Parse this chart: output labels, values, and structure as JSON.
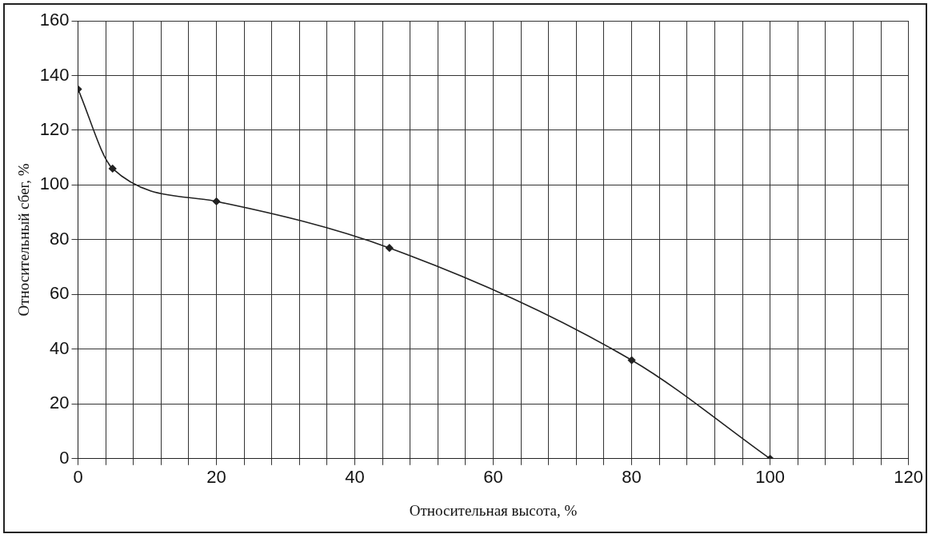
{
  "chart_data": {
    "type": "line",
    "xlabel": "Относительная высота, %",
    "ylabel": "Относительный сбег, %",
    "x": [
      0,
      5,
      20,
      45,
      80,
      100
    ],
    "series": [
      {
        "color": "#222222",
        "values": [
          135,
          106,
          94,
          77,
          36,
          0
        ]
      }
    ],
    "xlim": [
      0,
      120
    ],
    "xticks": [
      0,
      {
        "value": 4,
        "label": null
      },
      {
        "value": 8,
        "label": null
      },
      {
        "value": 12,
        "label": null
      },
      {
        "value": 16,
        "label": null
      },
      20,
      {
        "value": 24,
        "label": null
      },
      {
        "value": 28,
        "label": null
      },
      {
        "value": 32,
        "label": null
      },
      {
        "value": 36,
        "label": null
      },
      40,
      {
        "value": 44,
        "label": null
      },
      {
        "value": 48,
        "label": null
      },
      {
        "value": 52,
        "label": null
      },
      {
        "value": 56,
        "label": null
      },
      60,
      {
        "value": 64,
        "label": null
      },
      {
        "value": 68,
        "label": null
      },
      {
        "value": 72,
        "label": null
      },
      {
        "value": 76,
        "label": null
      },
      80,
      {
        "value": 84,
        "label": null
      },
      {
        "value": 88,
        "label": null
      },
      {
        "value": 92,
        "label": null
      },
      {
        "value": 96,
        "label": null
      },
      100,
      {
        "value": 104,
        "label": null
      },
      {
        "value": 108,
        "label": null
      },
      {
        "value": 112,
        "label": null
      },
      {
        "value": 116,
        "label": null
      },
      120
    ],
    "ylim": [
      0,
      160
    ],
    "yticks": [
      0,
      20,
      40,
      60,
      80,
      100,
      120,
      140,
      160
    ],
    "grid": true,
    "legend": false,
    "marker": "diamond",
    "line_style": "solid"
  }
}
